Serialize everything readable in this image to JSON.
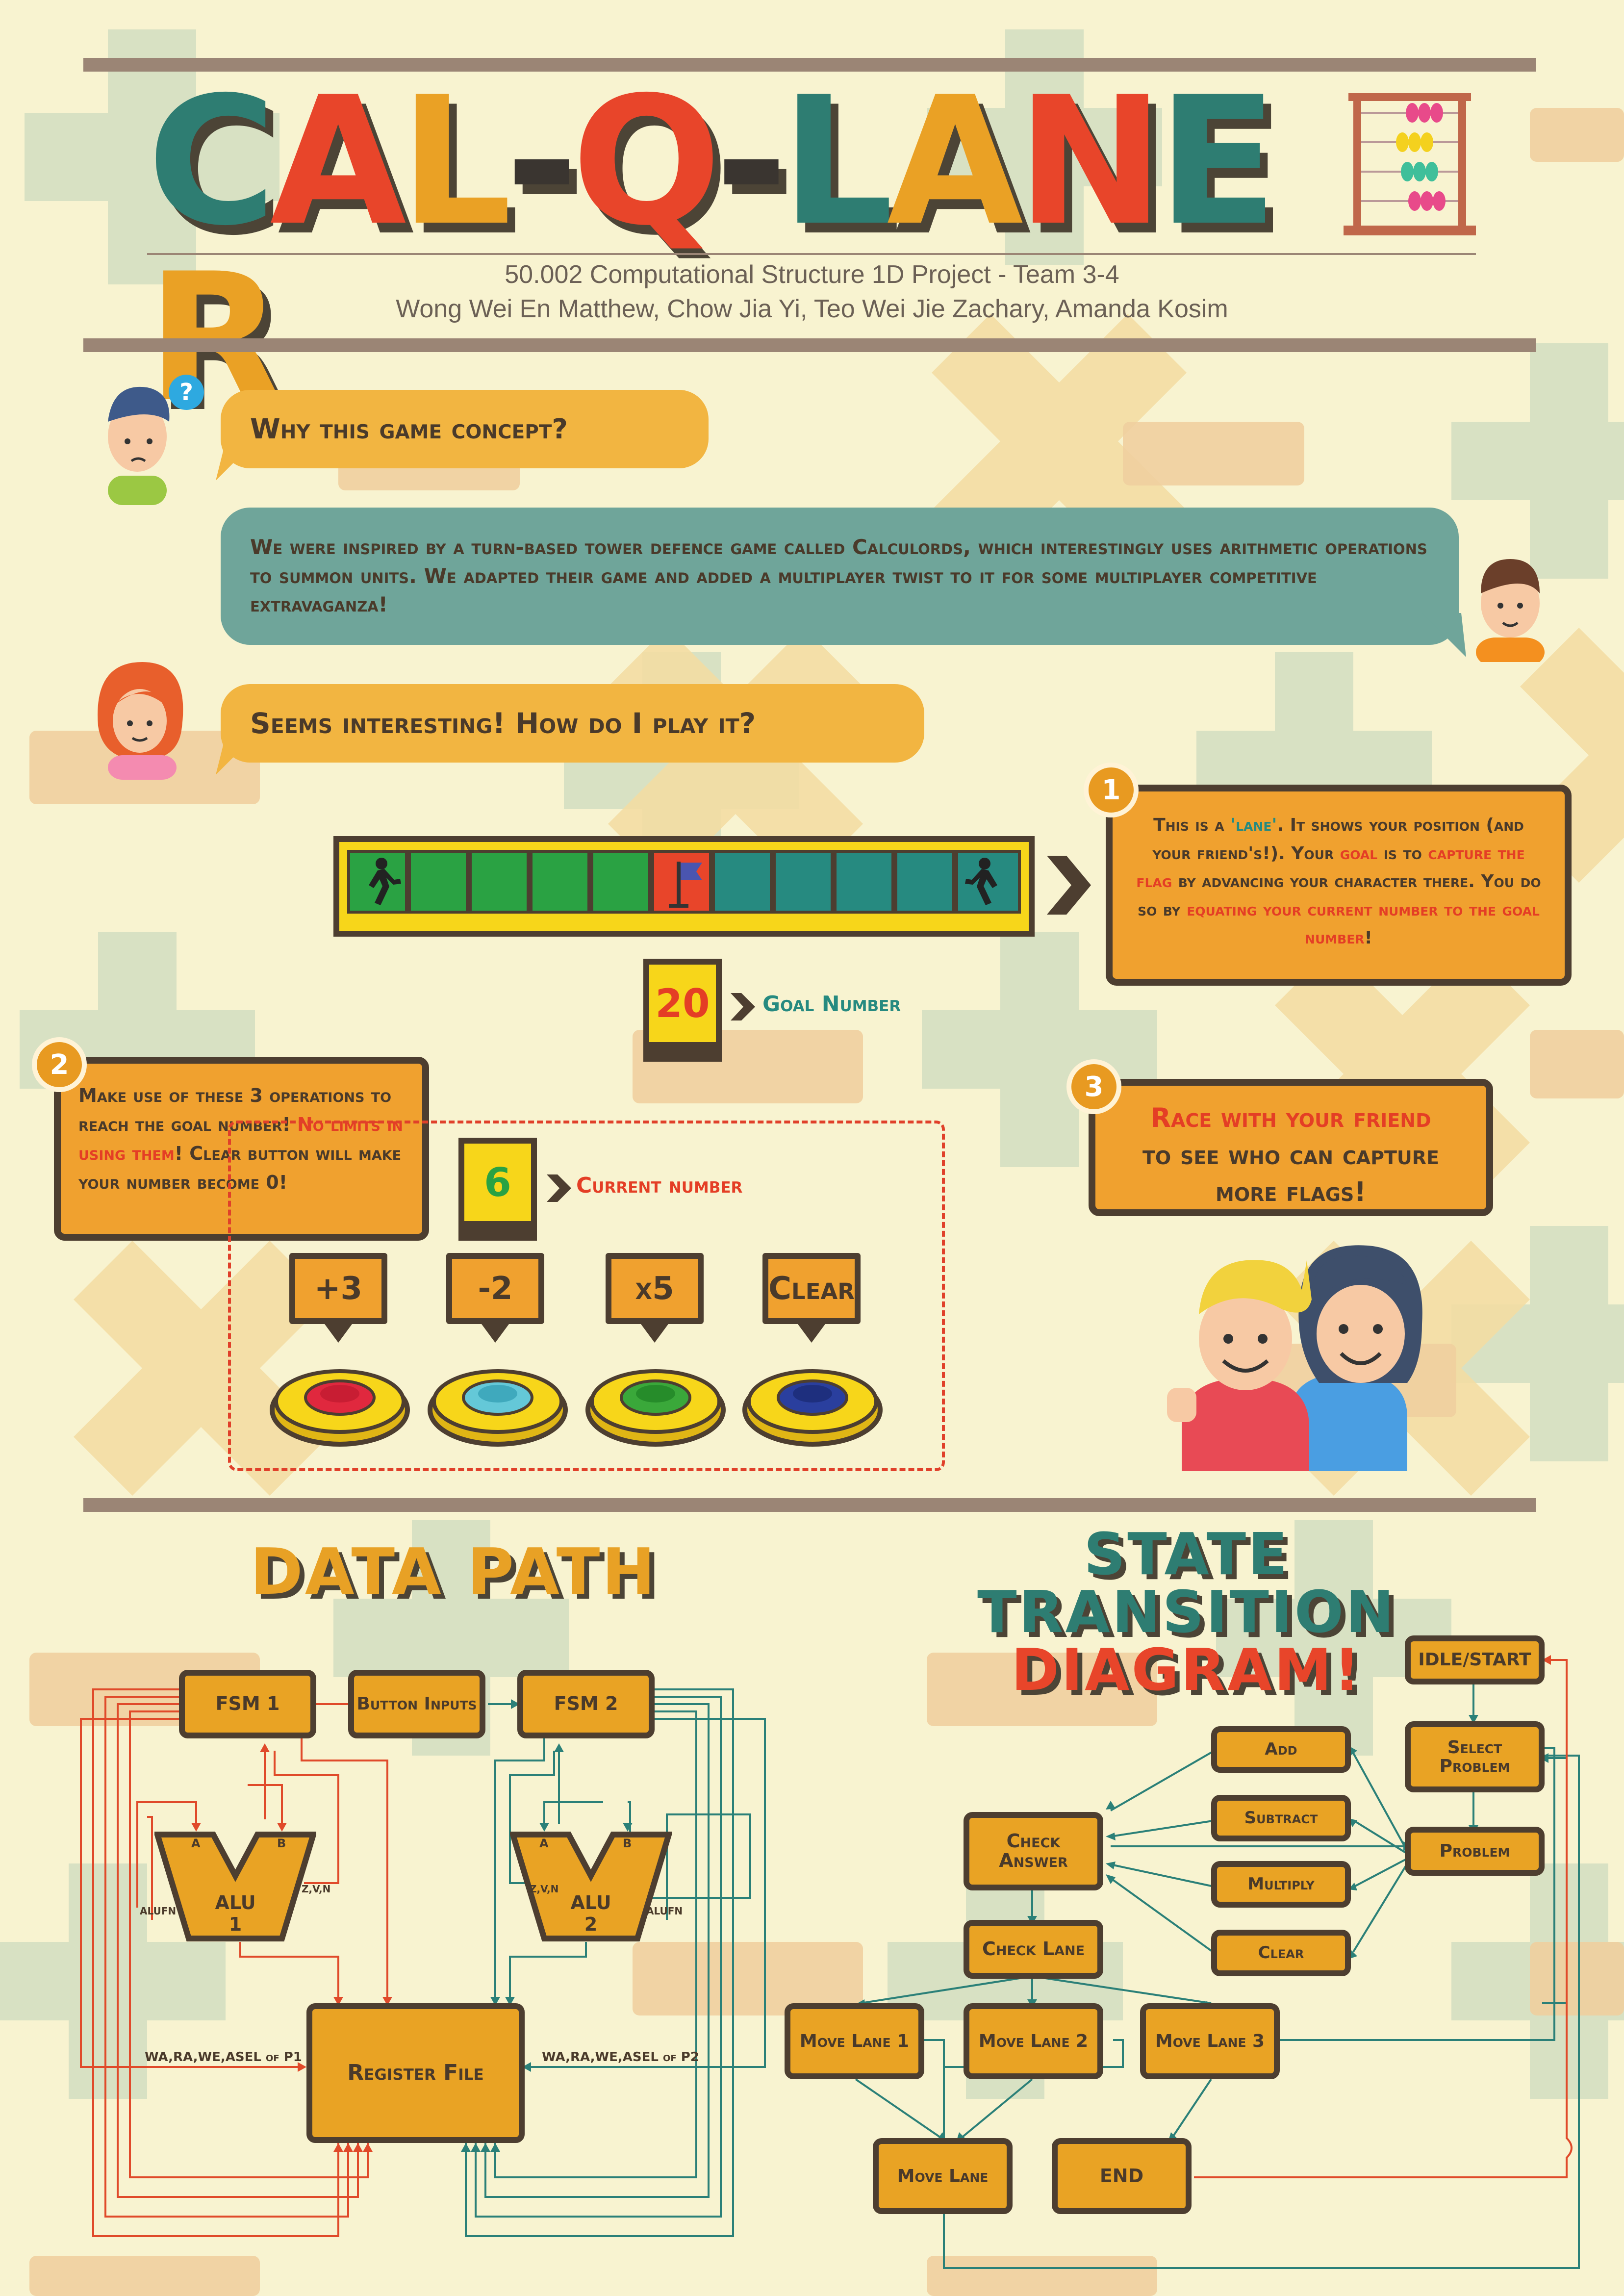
{
  "colors": {
    "background": "#f8f3d0",
    "orange": "#f0a12f",
    "dark_brown": "#4d3e30",
    "teal": "#268a80",
    "red": "#e43e25",
    "yellow": "#f7d61a",
    "green_lane": "#2aa243"
  },
  "title": {
    "letters": [
      "C",
      "A",
      "L",
      "-",
      "Q",
      "-",
      "L",
      "A",
      "N",
      "E",
      "R"
    ],
    "letter_colors": [
      "#2e7d72",
      "#e8452a",
      "#eaa125",
      "#3a3530",
      "#e8452a",
      "#3a3530",
      "#2e7d72",
      "#eaa125",
      "#e8452a",
      "#2e7d72",
      "#eaa125"
    ],
    "icon": "abacus-icon"
  },
  "subtitle": {
    "line1": "50.002 Computational Structure 1D Project - Team 3-4",
    "line2": "Wong Wei En Matthew, Chow Jia Yi, Teo Wei Jie Zachary, Amanda Kosim"
  },
  "dialogue": {
    "q1": "Why this game concept?",
    "a1": "We were inspired by a turn-based tower defence game called Calculords, which interestingly uses arithmetic operations to summon units. We adapted their game and added a multiplayer twist to it for some multiplayer competitive extravaganza!",
    "q2": "Seems interesting! How do I play it?"
  },
  "step1": {
    "num": "1",
    "t1": "This is a ",
    "t2": "'lane'",
    "t3": ". It shows your position (and your friend's!). Your ",
    "t4": "goal",
    "t5": " is to ",
    "t6": "capture the flag",
    "t7": " by advancing your character there. You do so by ",
    "t8": "equating your current number to the goal number",
    "t9": "!"
  },
  "lane": {
    "cells": [
      "player",
      "green",
      "green",
      "green",
      "green",
      "flag",
      "teal",
      "teal",
      "teal",
      "teal",
      "player"
    ]
  },
  "goal": {
    "value": "20",
    "label": "Goal Number"
  },
  "step2": {
    "num": "2",
    "t1": "Make use of these 3 operations to reach the goal number! ",
    "t2": "No limits in using them",
    "t3": "! Clear button will make your number become 0!"
  },
  "current": {
    "value": "6",
    "label": "Current number"
  },
  "buttons": [
    {
      "label": "+3",
      "color": "#e0283e",
      "inner": "#c81d33"
    },
    {
      "label": "-2",
      "color": "#64c8d8",
      "inner": "#3fa9bd"
    },
    {
      "label": "x5",
      "color": "#3aa83a",
      "inner": "#268c2a"
    },
    {
      "label": "Clear",
      "color": "#2a3f9e",
      "inner": "#1e2f7e"
    }
  ],
  "step3": {
    "num": "3",
    "t1": "Race with your friend",
    "t2": "to see who can capture more flags!"
  },
  "datapath": {
    "title": "DATA PATH",
    "fsm1": "FSM 1",
    "inputs": "Button Inputs",
    "fsm2": "FSM 2",
    "alu1": "ALU 1",
    "alu2": "ALU 2",
    "a": "A",
    "b": "B",
    "zvn": "Z,V,N",
    "alufn": "ALUFN",
    "regfile": "Register File",
    "p1": "WA,RA,WE,ASEL of P1",
    "p2": "WA,RA,WE,ASEL of P2"
  },
  "std": {
    "title1": "STATE TRANSITION",
    "title2": "DIAGRAM!",
    "idle": "IDLE/START",
    "select": "Select Problem",
    "problem": "Problem",
    "add": "Add",
    "subtract": "Subtract",
    "multiply": "Multiply",
    "clear": "Clear",
    "check_answer": "Check Answer",
    "check_lane": "Check Lane",
    "move1": "Move Lane 1",
    "move2": "Move Lane 2",
    "move3": "Move Lane 3",
    "move_lane": "Move Lane",
    "end": "END"
  }
}
